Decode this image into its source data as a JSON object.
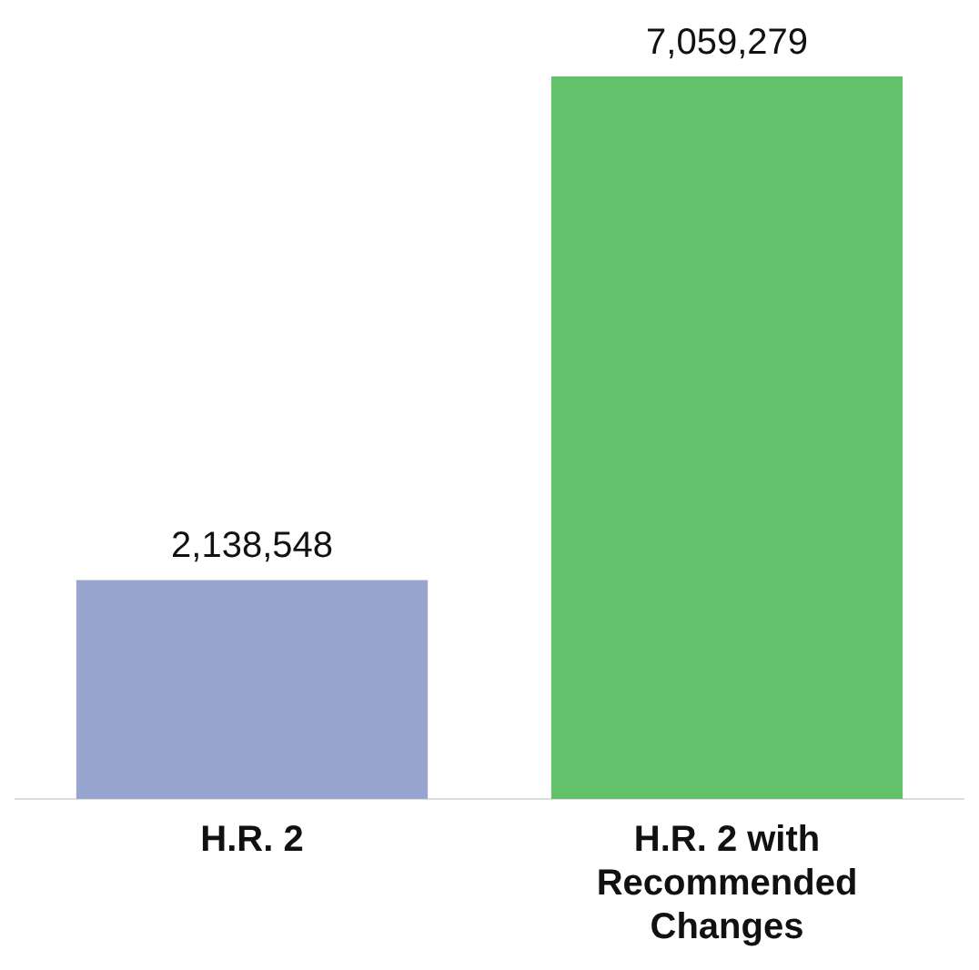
{
  "chart_data": {
    "type": "bar",
    "categories": [
      "H.R. 2",
      "H.R. 2 with Recommended Changes"
    ],
    "values": [
      2138548,
      7059279
    ],
    "colors": [
      "#98a6cf",
      "#63c06b"
    ],
    "value_labels": [
      "2,138,548",
      "7,059,279"
    ]
  }
}
